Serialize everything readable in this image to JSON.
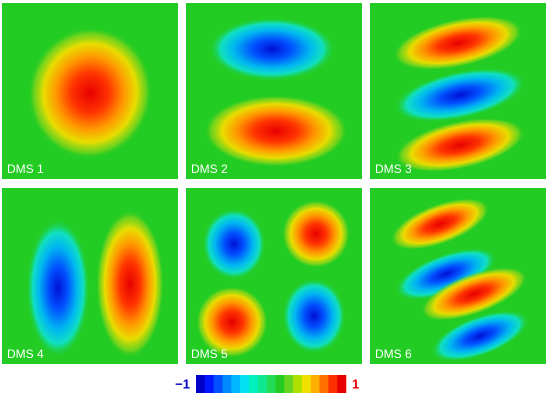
{
  "panels": [
    {
      "label": "DMS 1"
    },
    {
      "label": "DMS 2"
    },
    {
      "label": "DMS 3"
    },
    {
      "label": "DMS 4"
    },
    {
      "label": "DMS 5"
    },
    {
      "label": "DMS 6"
    }
  ],
  "colorbar": {
    "ticks": [
      {
        "value": -1,
        "label": "−1"
      },
      1
    ]
  }
}
